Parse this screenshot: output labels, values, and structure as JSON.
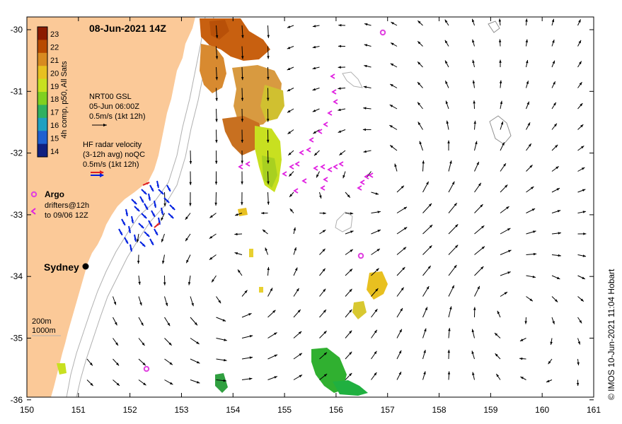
{
  "title": "08-Jun-2021 14Z",
  "colorbar": {
    "label": "4h comp, p50, All Sats",
    "ticks": [
      "23",
      "22",
      "21",
      "20",
      "19",
      "18",
      "17",
      "16",
      "15",
      "14"
    ],
    "colors": [
      "#8b1a00",
      "#b84a00",
      "#d88a20",
      "#e8c020",
      "#c8e020",
      "#80d020",
      "#30b060",
      "#20a0c0",
      "#2060d0",
      "#102080"
    ]
  },
  "legend": {
    "gsl_lines": [
      "NRT00 GSL",
      "05-Jun 06:00Z",
      "0.5m/s (1kt 12h)"
    ],
    "hf_lines": [
      "HF radar velocity",
      "(3-12h avg) noQC",
      "0.5m/s (1kt 12h)"
    ],
    "argo_label": "Argo",
    "drifter_lines": [
      "drifters@12h",
      "to 09/06 12Z"
    ],
    "depth_lines": [
      "200m",
      "1000m"
    ]
  },
  "city_label": "Sydney",
  "credit": "© IMOS 10-Jun-2021 11:04 Hobart",
  "x_ticks": [
    "150",
    "151",
    "152",
    "153",
    "154",
    "155",
    "156",
    "157",
    "158",
    "159",
    "160",
    "161"
  ],
  "y_ticks": [
    "-30",
    "-31",
    "-32",
    "-33",
    "-34",
    "-35",
    "-36"
  ],
  "colors": {
    "land": "#fbc998",
    "argo": "#e040e0",
    "drifter": "#e020e0",
    "hf_blue": "#0020e0",
    "hf_red": "#e02020",
    "contour": "#a0a0a0"
  }
}
